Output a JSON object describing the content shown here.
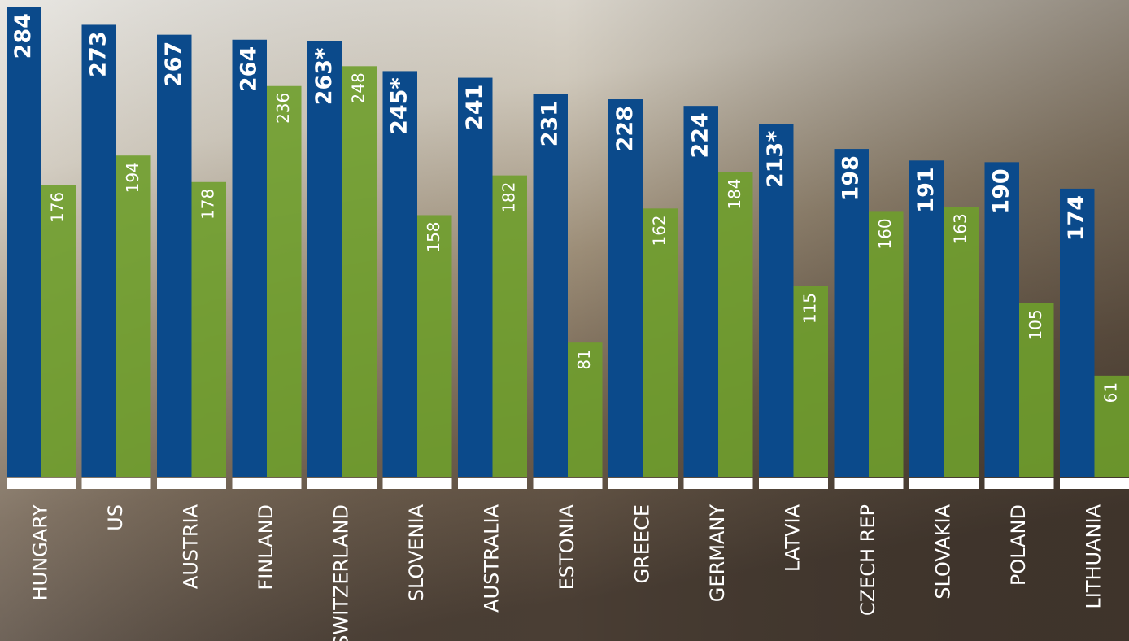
{
  "chart_data": {
    "type": "bar",
    "categories": [
      "HUNGARY",
      "US",
      "AUSTRIA",
      "FINLAND",
      "SWITZERLAND",
      "SLOVENIA",
      "AUSTRALIA",
      "ESTONIA",
      "GREECE",
      "GERMANY",
      "LATVIA",
      "CZECH REP",
      "SLOVAKIA",
      "POLAND",
      "LITHUANIA"
    ],
    "series": [
      {
        "color": "#0b4a8b",
        "values": [
          284,
          273,
          267,
          264,
          263,
          245,
          241,
          231,
          228,
          224,
          213,
          198,
          191,
          190,
          174
        ],
        "value_labels": [
          "284",
          "273",
          "267",
          "264",
          "263*",
          "245*",
          "241",
          "231",
          "228",
          "224",
          "213*",
          "198",
          "191",
          "190",
          "174"
        ]
      },
      {
        "color": "#6f9e2c",
        "values": [
          176,
          194,
          178,
          236,
          248,
          158,
          182,
          81,
          162,
          184,
          115,
          160,
          163,
          105,
          61
        ]
      }
    ]
  }
}
